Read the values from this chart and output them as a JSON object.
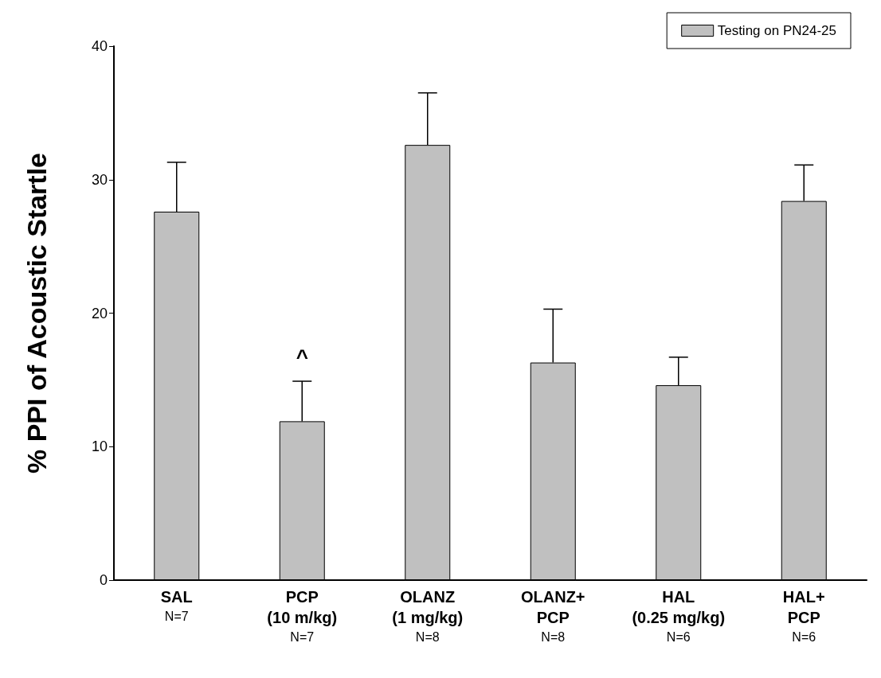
{
  "chart_data": {
    "type": "bar",
    "ylabel": "% PPI of Acoustic Startle",
    "categories": [
      "SAL\nN=7",
      "PCP\n(10 m/kg)\nN=7",
      "OLANZ\n(1 mg/kg)\nN=8",
      "OLANZ+\nPCP\nN=8",
      "HAL\n(0.25 mg/kg)\nN=6",
      "HAL+\nPCP\nN=6"
    ],
    "series": [
      {
        "name": "Testing on PN24-25",
        "color": "#c0c0c0",
        "values": [
          27.6,
          11.9,
          32.6,
          16.3,
          14.6,
          28.4
        ],
        "errors": [
          [
            27.6,
            31.3
          ],
          [
            11.9,
            14.9
          ],
          [
            32.6,
            36.5
          ],
          [
            16.3,
            20.3
          ],
          [
            14.6,
            16.7
          ],
          [
            28.4,
            31.1
          ]
        ]
      }
    ],
    "ylim": [
      0,
      40
    ],
    "yticks": [
      0,
      10,
      20,
      30,
      40
    ],
    "grid": false,
    "legend": "top right",
    "annotations": [
      {
        "text": "^",
        "x": "PCP\n(10 m/kg)\nN=7",
        "y": 14.9
      }
    ]
  }
}
